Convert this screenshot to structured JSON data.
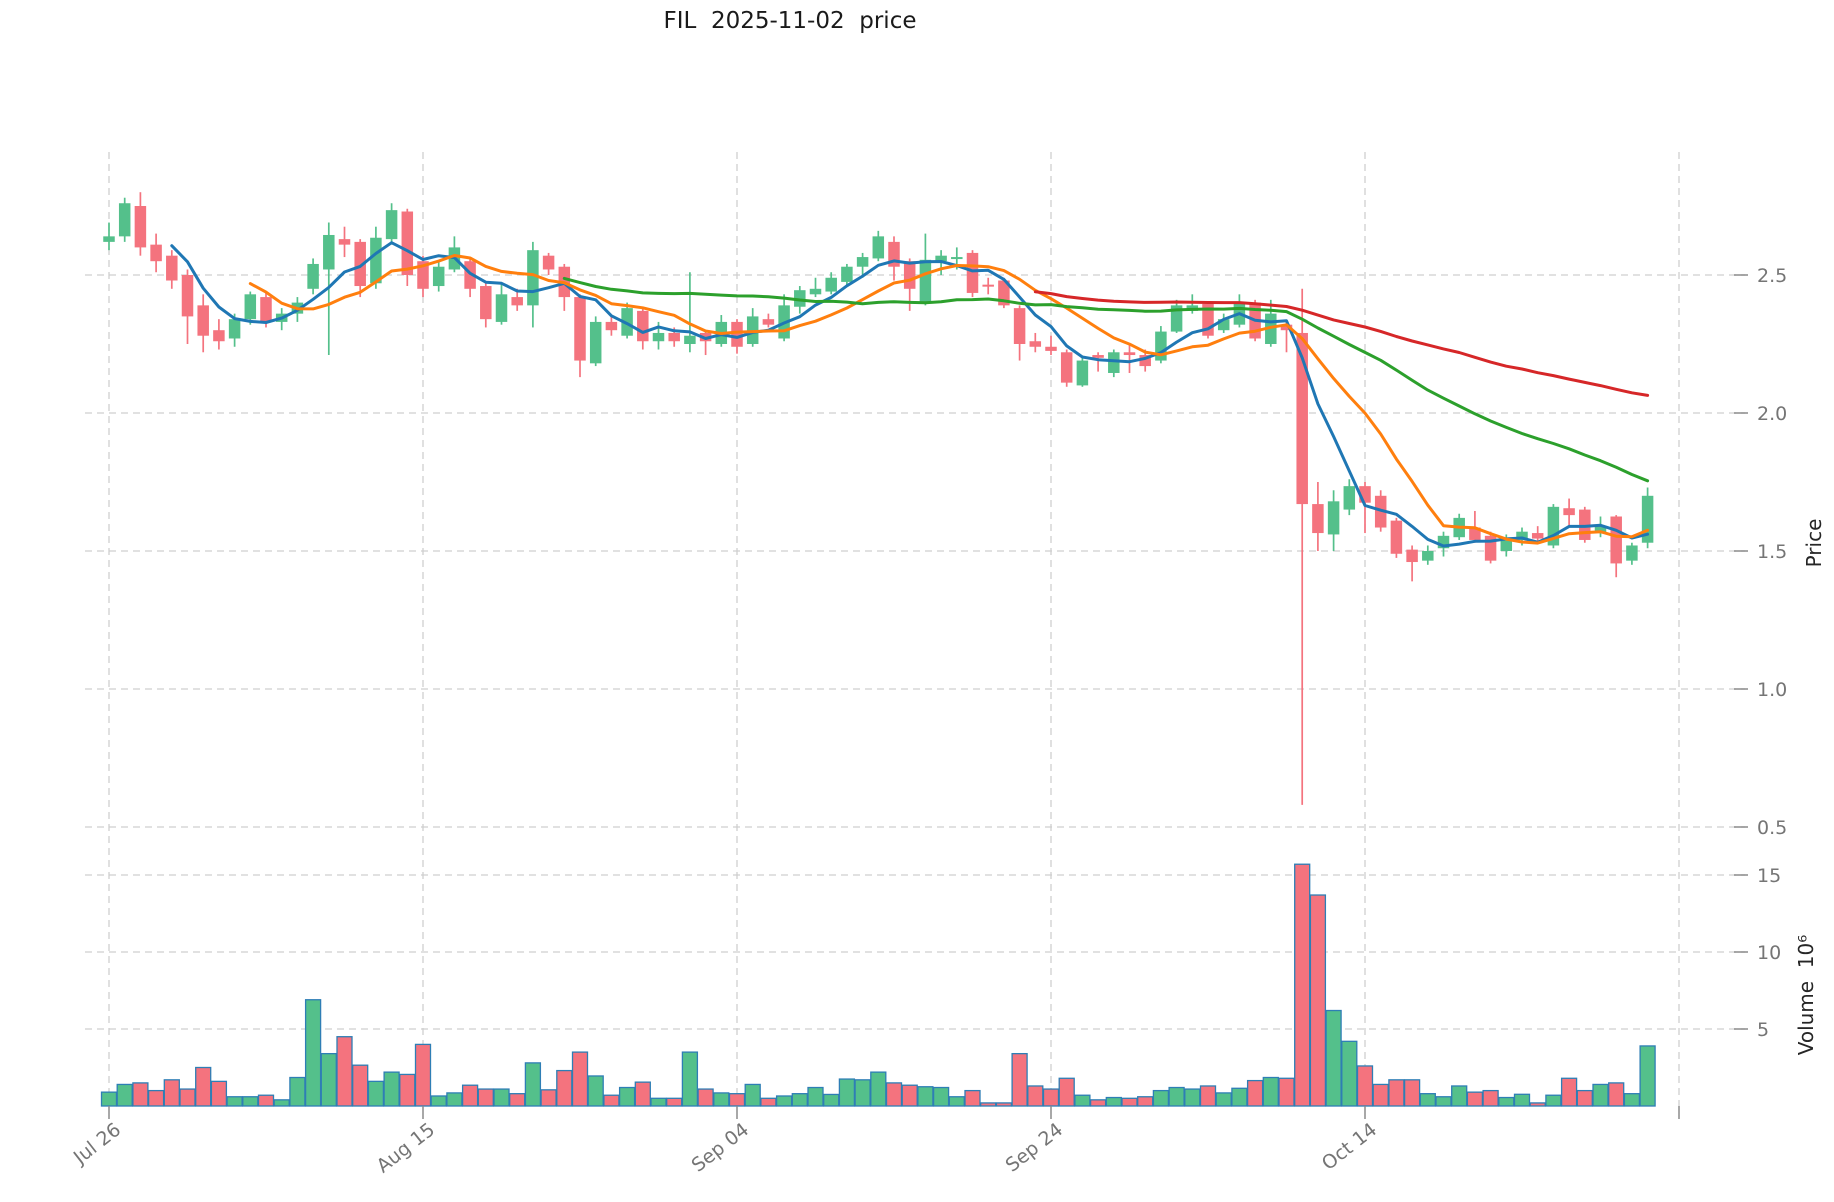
{
  "chart_data": {
    "type": "candlestick",
    "symbol": "FIL",
    "title": "FIL  2025-11-02  price",
    "ylabel_price": "Price",
    "ylabel_volume": "Volume  10⁶",
    "legend_position": "none",
    "grid": true,
    "price_axis": {
      "side": "right",
      "ticks": [
        2.5,
        2.0,
        1.5,
        1.0,
        0.5
      ],
      "range": [
        0.43,
        2.95
      ]
    },
    "volume_axis": {
      "side": "right",
      "ticks": [
        15,
        10,
        5
      ],
      "range": [
        0,
        16.4
      ],
      "unit_millions": true
    },
    "x_ticks": [
      {
        "slot": 0,
        "label": "Jul 26"
      },
      {
        "slot": 20,
        "label": "Aug 15"
      },
      {
        "slot": 40,
        "label": "Sep 04"
      },
      {
        "slot": 60,
        "label": "Sep 24"
      },
      {
        "slot": 80,
        "label": "Oct 14"
      },
      {
        "slot": 100,
        "label": ""
      }
    ],
    "moving_averages": [
      {
        "period": 5,
        "color": "#1f77b4"
      },
      {
        "period": 10,
        "color": "#ff7f0e"
      },
      {
        "period": 30,
        "color": "#2ca02c"
      },
      {
        "period": 60,
        "color": "#d62728"
      }
    ],
    "up_color": "#54c08b",
    "down_color": "#f4737e",
    "volume_edge_color": "#2e7eb5",
    "grid_color": "#cfcfcf",
    "tick_color": "#8a8a8a",
    "candle_fields": [
      "date",
      "open",
      "high",
      "low",
      "close",
      "volume_millions"
    ],
    "candles": [
      [
        "07-26",
        2.62,
        2.69,
        2.59,
        2.64,
        0.9
      ],
      [
        "07-27",
        2.64,
        2.78,
        2.62,
        2.76,
        1.4
      ],
      [
        "07-28",
        2.75,
        2.8,
        2.57,
        2.6,
        1.5
      ],
      [
        "07-29",
        2.61,
        2.65,
        2.51,
        2.55,
        1.0
      ],
      [
        "07-30",
        2.57,
        2.59,
        2.45,
        2.48,
        1.7
      ],
      [
        "07-31",
        2.5,
        2.52,
        2.25,
        2.35,
        1.1
      ],
      [
        "08-01",
        2.39,
        2.43,
        2.22,
        2.28,
        2.5
      ],
      [
        "08-02",
        2.3,
        2.34,
        2.23,
        2.26,
        1.6
      ],
      [
        "08-03",
        2.27,
        2.36,
        2.24,
        2.34,
        0.6
      ],
      [
        "08-04",
        2.34,
        2.44,
        2.32,
        2.43,
        0.6
      ],
      [
        "08-05",
        2.42,
        2.44,
        2.31,
        2.33,
        0.7
      ],
      [
        "08-06",
        2.33,
        2.38,
        2.3,
        2.36,
        0.4
      ],
      [
        "08-07",
        2.36,
        2.42,
        2.33,
        2.4,
        1.85
      ],
      [
        "08-08",
        2.45,
        2.56,
        2.43,
        2.54,
        6.9
      ],
      [
        "08-09",
        2.52,
        2.69,
        2.21,
        2.645,
        3.4
      ],
      [
        "08-10",
        2.63,
        2.675,
        2.565,
        2.61,
        4.5
      ],
      [
        "08-11",
        2.62,
        2.63,
        2.42,
        2.46,
        2.65
      ],
      [
        "08-12",
        2.47,
        2.675,
        2.45,
        2.635,
        1.6
      ],
      [
        "08-13",
        2.63,
        2.76,
        2.61,
        2.735,
        2.2
      ],
      [
        "08-14",
        2.73,
        2.74,
        2.46,
        2.5,
        2.05
      ],
      [
        "08-15",
        2.55,
        2.57,
        2.42,
        2.45,
        4.0
      ],
      [
        "08-16",
        2.46,
        2.55,
        2.44,
        2.53,
        0.65
      ],
      [
        "08-17",
        2.52,
        2.64,
        2.51,
        2.6,
        0.85
      ],
      [
        "08-18",
        2.55,
        2.56,
        2.42,
        2.45,
        1.35
      ],
      [
        "08-19",
        2.46,
        2.47,
        2.31,
        2.34,
        1.1
      ],
      [
        "08-20",
        2.33,
        2.47,
        2.32,
        2.43,
        1.1
      ],
      [
        "08-21",
        2.42,
        2.45,
        2.37,
        2.39,
        0.8
      ],
      [
        "08-22",
        2.39,
        2.62,
        2.31,
        2.59,
        2.8
      ],
      [
        "08-23",
        2.57,
        2.58,
        2.5,
        2.52,
        1.05
      ],
      [
        "08-24",
        2.53,
        2.54,
        2.37,
        2.42,
        2.3
      ],
      [
        "08-25",
        2.42,
        2.43,
        2.13,
        2.19,
        3.5
      ],
      [
        "08-26",
        2.18,
        2.35,
        2.17,
        2.33,
        1.95
      ],
      [
        "08-27",
        2.33,
        2.35,
        2.28,
        2.3,
        0.7
      ],
      [
        "08-28",
        2.28,
        2.4,
        2.27,
        2.38,
        1.2
      ],
      [
        "08-29",
        2.37,
        2.38,
        2.23,
        2.26,
        1.55
      ],
      [
        "08-30",
        2.26,
        2.33,
        2.23,
        2.29,
        0.5
      ],
      [
        "08-31",
        2.29,
        2.31,
        2.24,
        2.26,
        0.5
      ],
      [
        "09-01",
        2.25,
        2.51,
        2.22,
        2.28,
        3.5
      ],
      [
        "09-02",
        2.29,
        2.3,
        2.21,
        2.26,
        1.1
      ],
      [
        "09-03",
        2.25,
        2.355,
        2.24,
        2.33,
        0.85
      ],
      [
        "09-04",
        2.33,
        2.34,
        2.215,
        2.24,
        0.8
      ],
      [
        "09-05",
        2.25,
        2.38,
        2.24,
        2.35,
        1.4
      ],
      [
        "09-06",
        2.34,
        2.36,
        2.31,
        2.32,
        0.5
      ],
      [
        "09-07",
        2.27,
        2.43,
        2.26,
        2.39,
        0.65
      ],
      [
        "09-08",
        2.385,
        2.46,
        2.36,
        2.445,
        0.8
      ],
      [
        "09-09",
        2.43,
        2.49,
        2.42,
        2.45,
        1.2
      ],
      [
        "09-10",
        2.44,
        2.51,
        2.43,
        2.49,
        0.75
      ],
      [
        "09-11",
        2.475,
        2.54,
        2.46,
        2.53,
        1.75
      ],
      [
        "09-12",
        2.53,
        2.58,
        2.49,
        2.565,
        1.7
      ],
      [
        "09-13",
        2.56,
        2.66,
        2.55,
        2.64,
        2.2
      ],
      [
        "09-14",
        2.62,
        2.64,
        2.48,
        2.53,
        1.5
      ],
      [
        "09-15",
        2.55,
        2.56,
        2.37,
        2.45,
        1.35
      ],
      [
        "09-16",
        2.4,
        2.65,
        2.39,
        2.555,
        1.25
      ],
      [
        "09-17",
        2.55,
        2.59,
        2.5,
        2.57,
        1.2
      ],
      [
        "09-18",
        2.565,
        2.6,
        2.52,
        2.565,
        0.6
      ],
      [
        "09-19",
        2.58,
        2.59,
        2.42,
        2.435,
        1.0
      ],
      [
        "09-20",
        2.465,
        2.49,
        2.43,
        2.46,
        0.2
      ],
      [
        "09-21",
        2.48,
        2.49,
        2.38,
        2.39,
        0.2
      ],
      [
        "09-22",
        2.38,
        2.39,
        2.19,
        2.25,
        3.4
      ],
      [
        "09-23",
        2.26,
        2.29,
        2.22,
        2.24,
        1.3
      ],
      [
        "09-24",
        2.24,
        2.28,
        2.21,
        2.225,
        1.1
      ],
      [
        "09-25",
        2.22,
        2.23,
        2.095,
        2.11,
        1.8
      ],
      [
        "09-26",
        2.1,
        2.2,
        2.095,
        2.19,
        0.7
      ],
      [
        "09-27",
        2.21,
        2.22,
        2.15,
        2.2,
        0.4
      ],
      [
        "09-28",
        2.145,
        2.23,
        2.13,
        2.22,
        0.55
      ],
      [
        "09-29",
        2.22,
        2.25,
        2.145,
        2.21,
        0.5
      ],
      [
        "09-30",
        2.21,
        2.23,
        2.15,
        2.17,
        0.6
      ],
      [
        "10-01",
        2.19,
        2.315,
        2.18,
        2.295,
        1.0
      ],
      [
        "10-02",
        2.295,
        2.41,
        2.29,
        2.39,
        1.2
      ],
      [
        "10-03",
        2.37,
        2.43,
        2.36,
        2.39,
        1.1
      ],
      [
        "10-04",
        2.395,
        2.4,
        2.27,
        2.28,
        1.3
      ],
      [
        "10-05",
        2.3,
        2.36,
        2.29,
        2.34,
        0.85
      ],
      [
        "10-06",
        2.32,
        2.43,
        2.31,
        2.4,
        1.15
      ],
      [
        "10-07",
        2.4,
        2.41,
        2.26,
        2.27,
        1.65
      ],
      [
        "10-08",
        2.25,
        2.41,
        2.24,
        2.36,
        1.85
      ],
      [
        "10-09",
        2.32,
        2.33,
        2.22,
        2.3,
        1.8
      ],
      [
        "10-10",
        2.29,
        2.45,
        0.58,
        1.67,
        15.7
      ],
      [
        "10-11",
        1.67,
        1.75,
        1.5,
        1.565,
        13.7
      ],
      [
        "10-12",
        1.56,
        1.72,
        1.5,
        1.68,
        6.2
      ],
      [
        "10-13",
        1.65,
        1.76,
        1.63,
        1.735,
        4.2
      ],
      [
        "10-14",
        1.735,
        1.75,
        1.565,
        1.675,
        2.6
      ],
      [
        "10-15",
        1.7,
        1.72,
        1.57,
        1.585,
        1.4
      ],
      [
        "10-16",
        1.61,
        1.62,
        1.475,
        1.49,
        1.7
      ],
      [
        "10-17",
        1.505,
        1.52,
        1.39,
        1.46,
        1.7
      ],
      [
        "10-18",
        1.465,
        1.52,
        1.45,
        1.5,
        0.8
      ],
      [
        "10-19",
        1.51,
        1.57,
        1.48,
        1.555,
        0.6
      ],
      [
        "10-20",
        1.55,
        1.635,
        1.54,
        1.62,
        1.3
      ],
      [
        "10-21",
        1.585,
        1.645,
        1.53,
        1.54,
        0.9
      ],
      [
        "10-22",
        1.555,
        1.57,
        1.455,
        1.465,
        1.0
      ],
      [
        "10-23",
        1.5,
        1.56,
        1.48,
        1.54,
        0.55
      ],
      [
        "10-24",
        1.54,
        1.585,
        1.52,
        1.57,
        0.76
      ],
      [
        "10-25",
        1.565,
        1.59,
        1.53,
        1.545,
        0.2
      ],
      [
        "10-26",
        1.52,
        1.67,
        1.51,
        1.66,
        0.7
      ],
      [
        "10-27",
        1.655,
        1.69,
        1.59,
        1.63,
        1.8
      ],
      [
        "10-28",
        1.65,
        1.66,
        1.53,
        1.54,
        1.0
      ],
      [
        "10-29",
        1.565,
        1.625,
        1.55,
        1.59,
        1.4
      ],
      [
        "10-30",
        1.625,
        1.63,
        1.405,
        1.455,
        1.5
      ],
      [
        "10-31",
        1.465,
        1.53,
        1.45,
        1.52,
        0.8
      ],
      [
        "11-01",
        1.53,
        1.73,
        1.51,
        1.7,
        3.9
      ]
    ]
  }
}
